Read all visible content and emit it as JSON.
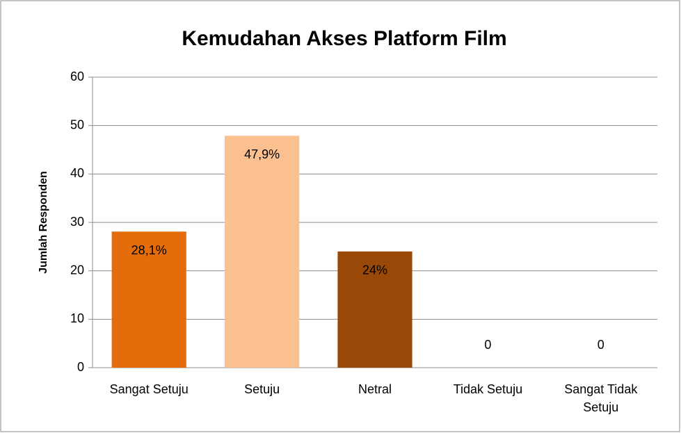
{
  "chart_data": {
    "type": "bar",
    "title": "Kemudahan Akses Platform Film",
    "y_label": "Jumlah Responden",
    "categories": [
      "Sangat Setuju",
      "Setuju",
      "Netral",
      "Tidak Setuju",
      "Sangat Tidak Setuju"
    ],
    "values": [
      28.1,
      47.9,
      24,
      0,
      0
    ],
    "value_labels": [
      "28,1%",
      "47,9%",
      "24%",
      "0",
      "0"
    ],
    "colors": [
      "#e46c0a",
      "#fac090",
      "#984807",
      "#4f81bd",
      "#4f81bd"
    ],
    "ylim": [
      0,
      60
    ],
    "yticks": [
      0,
      10,
      20,
      30,
      40,
      50,
      60
    ],
    "grid": true
  }
}
